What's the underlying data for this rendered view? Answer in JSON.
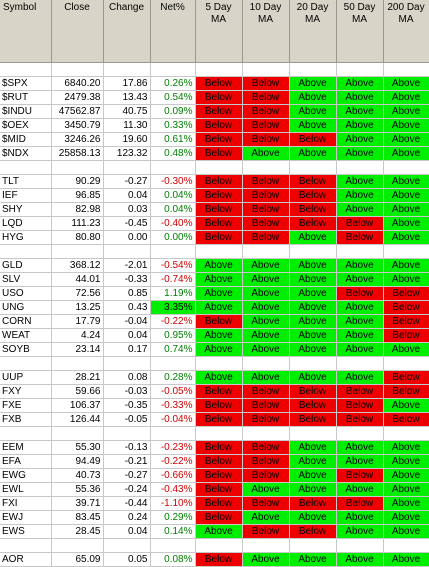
{
  "headers": {
    "symbol": "Symbol",
    "close": "Close",
    "change": "Change",
    "net": "Net%",
    "ma": [
      {
        "line1": "5 Day",
        "line2": "MA"
      },
      {
        "line1": "10 Day",
        "line2": "MA"
      },
      {
        "line1": "20 Day",
        "line2": "MA"
      },
      {
        "line1": "50 Day",
        "line2": "MA"
      },
      {
        "line1": "200 Day",
        "line2": "MA"
      }
    ]
  },
  "groups": [
    [
      {
        "symbol": "$SPX",
        "close": "6840.20",
        "change": "17.86",
        "net": "0.26%",
        "ma": [
          "Below",
          "Below",
          "Above",
          "Above",
          "Above"
        ]
      },
      {
        "symbol": "$RUT",
        "close": "2479.38",
        "change": "13.43",
        "net": "0.54%",
        "ma": [
          "Below",
          "Below",
          "Above",
          "Above",
          "Above"
        ]
      },
      {
        "symbol": "$INDU",
        "close": "47562.87",
        "change": "40.75",
        "net": "0.09%",
        "ma": [
          "Below",
          "Below",
          "Above",
          "Above",
          "Above"
        ]
      },
      {
        "symbol": "$OEX",
        "close": "3450.79",
        "change": "11.30",
        "net": "0.33%",
        "ma": [
          "Below",
          "Below",
          "Above",
          "Above",
          "Above"
        ]
      },
      {
        "symbol": "$MID",
        "close": "3246.26",
        "change": "19.60",
        "net": "0.61%",
        "ma": [
          "Below",
          "Below",
          "Below",
          "Above",
          "Above"
        ]
      },
      {
        "symbol": "$NDX",
        "close": "25858.13",
        "change": "123.32",
        "net": "0.48%",
        "ma": [
          "Below",
          "Above",
          "Above",
          "Above",
          "Above"
        ]
      }
    ],
    [
      {
        "symbol": "TLT",
        "close": "90.29",
        "change": "-0.27",
        "net": "-0.30%",
        "ma": [
          "Below",
          "Below",
          "Below",
          "Above",
          "Above"
        ]
      },
      {
        "symbol": "IEF",
        "close": "96.85",
        "change": "0.04",
        "net": "0.04%",
        "ma": [
          "Below",
          "Below",
          "Below",
          "Above",
          "Above"
        ]
      },
      {
        "symbol": "SHY",
        "close": "82.98",
        "change": "0.03",
        "net": "0.04%",
        "ma": [
          "Below",
          "Below",
          "Below",
          "Above",
          "Above"
        ]
      },
      {
        "symbol": "LQD",
        "close": "111.23",
        "change": "-0.45",
        "net": "-0.40%",
        "ma": [
          "Below",
          "Below",
          "Below",
          "Below",
          "Above"
        ]
      },
      {
        "symbol": "HYG",
        "close": "80.80",
        "change": "0.00",
        "net": "0.00%",
        "ma": [
          "Below",
          "Below",
          "Above",
          "Below",
          "Above"
        ]
      }
    ],
    [
      {
        "symbol": "GLD",
        "close": "368.12",
        "change": "-2.01",
        "net": "-0.54%",
        "ma": [
          "Above",
          "Above",
          "Above",
          "Above",
          "Above"
        ]
      },
      {
        "symbol": "SLV",
        "close": "44.01",
        "change": "-0.33",
        "net": "-0.74%",
        "ma": [
          "Above",
          "Above",
          "Above",
          "Above",
          "Above"
        ]
      },
      {
        "symbol": "USO",
        "close": "72.56",
        "change": "0.85",
        "net": "1.19%",
        "ma": [
          "Above",
          "Above",
          "Above",
          "Below",
          "Below"
        ]
      },
      {
        "symbol": "UNG",
        "close": "13.25",
        "change": "0.43",
        "net": "3.35%",
        "highlight": true,
        "ma": [
          "Above",
          "Above",
          "Above",
          "Above",
          "Below"
        ]
      },
      {
        "symbol": "CORN",
        "close": "17.79",
        "change": "-0.04",
        "net": "-0.22%",
        "ma": [
          "Below",
          "Above",
          "Above",
          "Above",
          "Below"
        ]
      },
      {
        "symbol": "WEAT",
        "close": "4.24",
        "change": "0.04",
        "net": "0.95%",
        "ma": [
          "Above",
          "Above",
          "Above",
          "Above",
          "Below"
        ]
      },
      {
        "symbol": "SOYB",
        "close": "23.14",
        "change": "0.17",
        "net": "0.74%",
        "ma": [
          "Above",
          "Above",
          "Above",
          "Above",
          "Above"
        ]
      }
    ],
    [
      {
        "symbol": "UUP",
        "close": "28.21",
        "change": "0.08",
        "net": "0.28%",
        "ma": [
          "Above",
          "Above",
          "Above",
          "Above",
          "Below"
        ]
      },
      {
        "symbol": "FXY",
        "close": "59.66",
        "change": "-0.03",
        "net": "-0.05%",
        "ma": [
          "Below",
          "Below",
          "Below",
          "Below",
          "Below"
        ]
      },
      {
        "symbol": "FXE",
        "close": "106.37",
        "change": "-0.35",
        "net": "-0.33%",
        "ma": [
          "Below",
          "Below",
          "Below",
          "Below",
          "Above"
        ]
      },
      {
        "symbol": "FXB",
        "close": "126.44",
        "change": "-0.05",
        "net": "-0.04%",
        "ma": [
          "Below",
          "Below",
          "Below",
          "Below",
          "Below"
        ]
      }
    ],
    [
      {
        "symbol": "EEM",
        "close": "55.30",
        "change": "-0.13",
        "net": "-0.23%",
        "ma": [
          "Below",
          "Below",
          "Above",
          "Above",
          "Above"
        ]
      },
      {
        "symbol": "EFA",
        "close": "94.49",
        "change": "-0.21",
        "net": "-0.22%",
        "ma": [
          "Below",
          "Below",
          "Above",
          "Above",
          "Above"
        ]
      },
      {
        "symbol": "EWG",
        "close": "40.73",
        "change": "-0.27",
        "net": "-0.66%",
        "ma": [
          "Below",
          "Below",
          "Above",
          "Below",
          "Above"
        ]
      },
      {
        "symbol": "EWL",
        "close": "55.36",
        "change": "-0.24",
        "net": "-0.43%",
        "ma": [
          "Below",
          "Above",
          "Above",
          "Above",
          "Above"
        ]
      },
      {
        "symbol": "FXI",
        "close": "39.71",
        "change": "-0.44",
        "net": "-1.10%",
        "ma": [
          "Below",
          "Below",
          "Below",
          "Below",
          "Above"
        ]
      },
      {
        "symbol": "EWJ",
        "close": "83.45",
        "change": "0.24",
        "net": "0.29%",
        "ma": [
          "Below",
          "Above",
          "Above",
          "Above",
          "Above"
        ]
      },
      {
        "symbol": "EWS",
        "close": "28.45",
        "change": "0.04",
        "net": "0.14%",
        "ma": [
          "Above",
          "Below",
          "Below",
          "Above",
          "Above"
        ]
      }
    ],
    [
      {
        "symbol": "AOR",
        "close": "65.09",
        "change": "0.05",
        "net": "0.08%",
        "ma": [
          "Below",
          "Above",
          "Above",
          "Above",
          "Above"
        ]
      }
    ]
  ]
}
